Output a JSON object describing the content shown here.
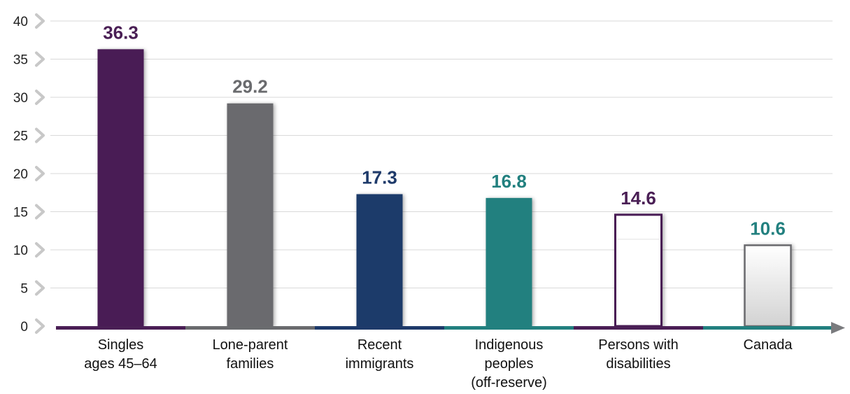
{
  "chart_data": {
    "type": "bar",
    "categories": [
      [
        "Singles",
        "ages 45–64"
      ],
      [
        "Lone-parent",
        "families"
      ],
      [
        "Recent",
        "immigrants"
      ],
      [
        "Indigenous",
        "peoples",
        "(off-reserve)"
      ],
      [
        "Persons with",
        "disabilities"
      ],
      [
        "Canada"
      ]
    ],
    "values": [
      36.3,
      29.2,
      17.3,
      16.8,
      14.6,
      10.6
    ],
    "value_labels": [
      "36.3",
      "29.2",
      "17.3",
      "16.8",
      "14.6",
      "10.6"
    ],
    "bar_styles": [
      "filled",
      "filled",
      "filled",
      "filled",
      "outline",
      "outline-gradient"
    ],
    "colors": [
      "#4a1f55",
      "#6a6b6e",
      "#1e3a6a",
      "#22807f",
      "#4a1f55",
      "#22807f"
    ],
    "bar_colors": [
      "#4a1f55",
      "#6a6b6e",
      "#1e3a6a",
      "#22807f",
      "#ffffff",
      "#e6e6e6"
    ],
    "yticks": [
      0,
      5,
      10,
      15,
      20,
      25,
      30,
      35,
      40
    ],
    "ylim": [
      0,
      40
    ],
    "grid": true,
    "title": "",
    "xlabel": "",
    "ylabel": ""
  }
}
